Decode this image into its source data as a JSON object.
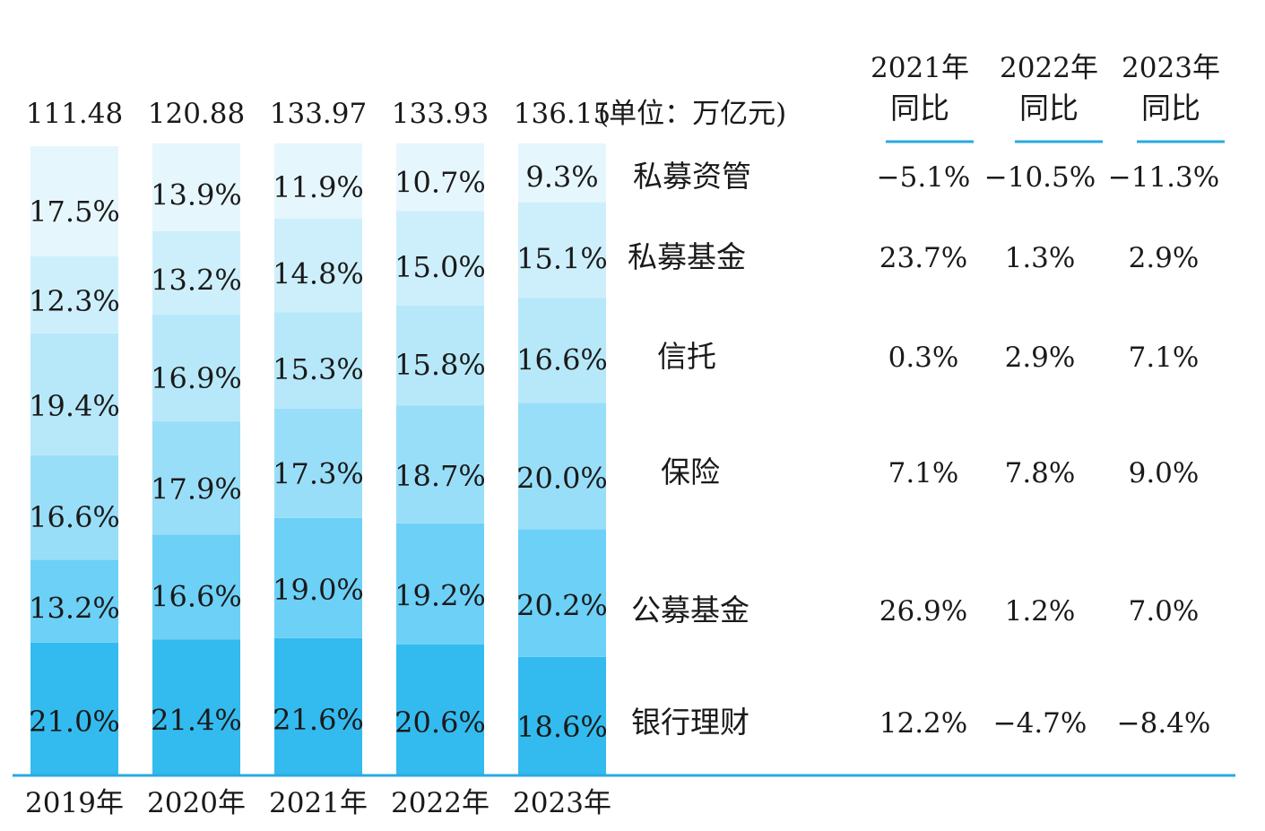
{
  "chart_data": {
    "type": "bar",
    "stacked": "percent",
    "unit_note": "(单位：万亿元)",
    "categories": [
      "2019年",
      "2020年",
      "2021年",
      "2022年",
      "2023年"
    ],
    "totals": [
      "111.48",
      "120.88",
      "133.97",
      "133.93",
      "136.15"
    ],
    "series": [
      {
        "name": "银行理财",
        "values": [
          21.0,
          21.4,
          21.6,
          20.6,
          18.6
        ],
        "labels": [
          "21.0%",
          "21.4%",
          "21.6%",
          "20.6%",
          "18.6%"
        ]
      },
      {
        "name": "公募基金",
        "values": [
          13.2,
          16.6,
          19.0,
          19.2,
          20.2
        ],
        "labels": [
          "13.2%",
          "16.6%",
          "19.0%",
          "19.2%",
          "20.2%"
        ]
      },
      {
        "name": "保险",
        "values": [
          16.6,
          17.9,
          17.3,
          18.7,
          20.0
        ],
        "labels": [
          "16.6%",
          "17.9%",
          "17.3%",
          "18.7%",
          "20.0%"
        ]
      },
      {
        "name": "信托",
        "values": [
          19.4,
          16.9,
          15.3,
          15.8,
          16.6
        ],
        "labels": [
          "19.4%",
          "16.9%",
          "15.3%",
          "15.8%",
          "16.6%"
        ]
      },
      {
        "name": "私募基金",
        "values": [
          12.3,
          13.2,
          14.8,
          15.0,
          15.1
        ],
        "labels": [
          "12.3%",
          "13.2%",
          "14.8%",
          "15.0%",
          "15.1%"
        ]
      },
      {
        "name": "私募资管",
        "values": [
          17.5,
          13.9,
          11.9,
          10.7,
          9.3
        ],
        "labels": [
          "17.5%",
          "13.9%",
          "11.9%",
          "10.7%",
          "9.3%"
        ]
      }
    ],
    "colors": [
      "#33bbef",
      "#6dd0f6",
      "#99def8",
      "#b7e8fa",
      "#cdeffb",
      "#e6f6fd"
    ],
    "yoy_table": {
      "headers": [
        {
          "year": "2021年",
          "label": "同比"
        },
        {
          "year": "2022年",
          "label": "同比"
        },
        {
          "year": "2023年",
          "label": "同比"
        }
      ],
      "rows": [
        {
          "name": "私募资管",
          "values": [
            "−5.1%",
            "−10.5%",
            "−11.3%"
          ]
        },
        {
          "name": "私募基金",
          "values": [
            "23.7%",
            "1.3%",
            "2.9%"
          ]
        },
        {
          "name": "信托",
          "values": [
            "0.3%",
            "2.9%",
            "7.1%"
          ]
        },
        {
          "name": "保险",
          "values": [
            "7.1%",
            "7.8%",
            "9.0%"
          ]
        },
        {
          "name": "公募基金",
          "values": [
            "26.9%",
            "1.2%",
            "7.0%"
          ]
        },
        {
          "name": "银行理财",
          "values": [
            "12.2%",
            "−4.7%",
            "−8.4%"
          ]
        }
      ],
      "line_color": "#29a9e0"
    },
    "axis_color": "#29a9e0"
  }
}
